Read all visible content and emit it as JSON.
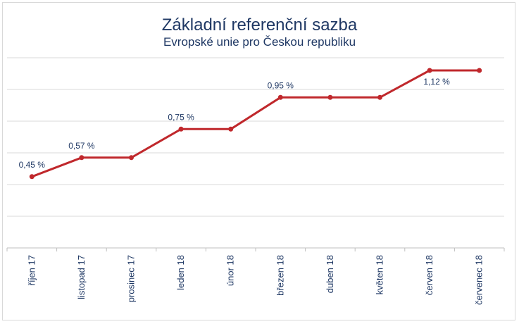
{
  "chart_data": {
    "type": "line",
    "title": "Základní referenční sazba",
    "subtitle": "Evropské unie pro Českou republiku",
    "categories": [
      "říjen 17",
      "listopad 17",
      "prosinec 17",
      "leden 18",
      "únor 18",
      "březen 18",
      "duben 18",
      "květen 18",
      "červen 18",
      "červenec 18"
    ],
    "series": [
      {
        "values": [
          0.45,
          0.57,
          0.57,
          0.75,
          0.75,
          0.95,
          0.95,
          0.95,
          1.12,
          1.12
        ]
      }
    ],
    "data_labels": [
      {
        "index": 0,
        "text": "0,45 %"
      },
      {
        "index": 1,
        "text": "0,57 %"
      },
      {
        "index": 3,
        "text": "0,75 %"
      },
      {
        "index": 5,
        "text": "0,95 %"
      },
      {
        "index": 8,
        "text": "1,12 %"
      }
    ],
    "ylim": [
      0,
      1.2
    ],
    "grid": true,
    "line_color": "#c0282c",
    "label_color": "#1f3864"
  }
}
